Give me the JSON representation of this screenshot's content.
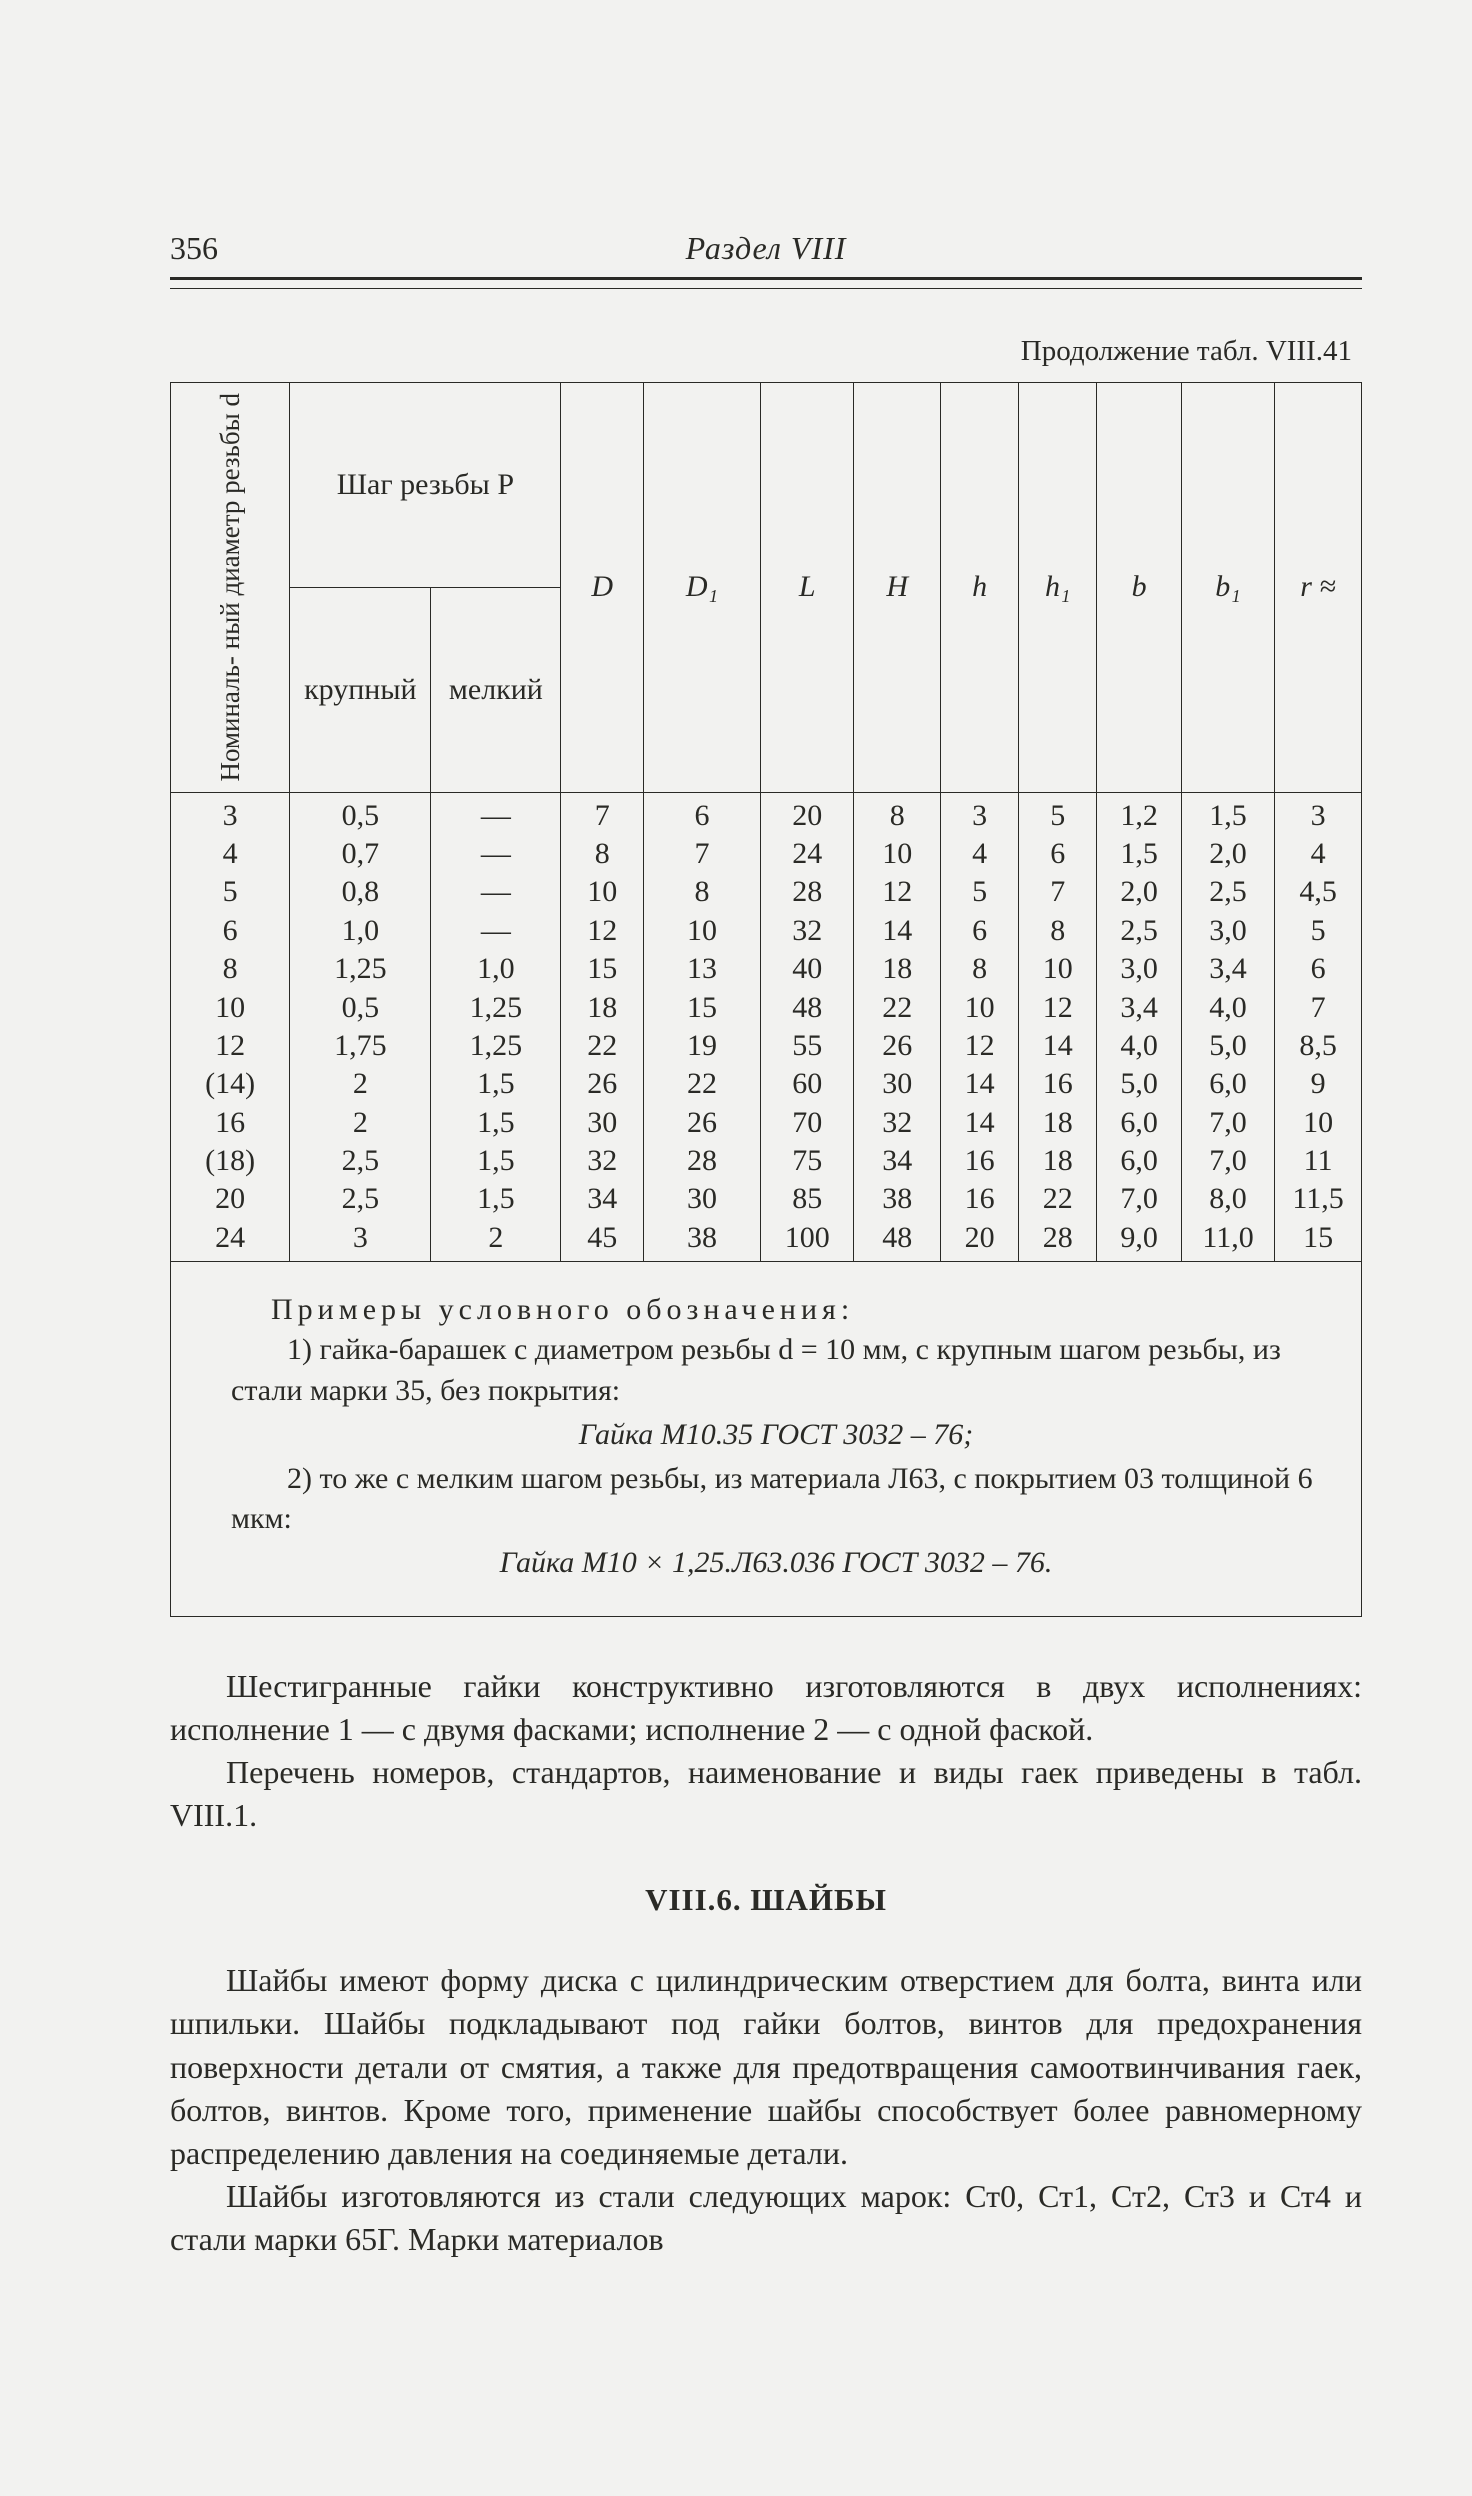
{
  "page_number": "356",
  "section_title": "Раздел  VIII",
  "table_caption": "Продолжение табл. VIII.41",
  "header": {
    "col0": "Номиналь-\nный диаметр\nрезьбы d",
    "pitch_group": "Шаг резьбы P",
    "pitch_coarse": "крупный",
    "pitch_fine": "мелкий",
    "D": "D",
    "D1": "D₁",
    "L": "L",
    "H": "H",
    "h": "h",
    "h1": "h₁",
    "b": "b",
    "b1": "b₁",
    "r": "r  ≈"
  },
  "cols": {
    "d": "3\n4\n5\n6\n8\n10\n12\n(14)\n16\n(18)\n20\n24",
    "coarse": "0,5\n0,7\n0,8\n1,0\n1,25\n0,5\n1,75\n2\n2\n2,5\n2,5\n3",
    "fine": "—\n—\n—\n—\n1,0\n1,25\n1,25\n1,5\n1,5\n1,5\n1,5\n2",
    "D": "7\n8\n10\n12\n15\n18\n22\n26\n30\n32\n34\n45",
    "D1": "6\n7\n8\n10\n13\n15\n19\n22\n26\n28\n30\n38",
    "L": "20\n24\n28\n32\n40\n48\n55\n60\n70\n75\n85\n100",
    "H": "8\n10\n12\n14\n18\n22\n26\n30\n32\n34\n38\n48",
    "h": "3\n4\n5\n6\n8\n10\n12\n14\n14\n16\n16\n20",
    "h1": "5\n6\n7\n8\n10\n12\n14\n16\n18\n18\n22\n28",
    "b": "1,2\n1,5\n2,0\n2,5\n3,0\n3,4\n4,0\n5,0\n6,0\n6,0\n7,0\n9,0",
    "b1": "1,5\n2,0\n2,5\n3,0\n3,4\n4,0\n5,0\n6,0\n7,0\n7,0\n8,0\n11,0",
    "r": "3\n4\n4,5\n5\n6\n7\n8,5\n9\n10\n11\n11,5\n15"
  },
  "examples": {
    "title": "Примеры условного обозначения:",
    "line1": "1) гайка-барашек с диаметром резьбы d = 10 мм, с крупным шагом резьбы, из стали марки 35, без покрытия:",
    "spec1": "Гайка  М10.35  ГОСТ 3032 – 76;",
    "line2": "2) то же с мелким шагом резьбы, из материала Л63, с покры­тием 03 толщиной 6 мкм:",
    "spec2": "Гайка  М10 × 1,25.Л63.036  ГОСТ 3032 – 76."
  },
  "para1": "Шестигранные гайки конструктивно изготовляются в двух исполнениях: исполнение 1 — с двумя фасками; исполнение 2 — с одной фаской.",
  "para2": "Перечень номеров, стандартов, наименование и виды гаек приведены в табл. VIII.1.",
  "section_head": "VIII.6. ШАЙБЫ",
  "para3": "Шайбы имеют форму диска с цилиндрическим отверстием для болта, винта или шпильки. Шайбы подкладывают под гайки болтов, винтов для предохранения поверхности де­тали от смятия, а также для предотвращения самоотвин­чивания гаек, болтов, винтов. Кроме того, применение шайбы способствует более равномерному распределению давления на соединяемые детали.",
  "para4": "Шайбы изготовляются из стали следующих марок: Ст0, Ст1, Ст2, Ст3 и Ст4 и стали марки 65Г. Марки материалов",
  "colwidths": {
    "d": 110,
    "coarse": 130,
    "fine": 120,
    "D": 76,
    "D1": 108,
    "L": 86,
    "H": 80,
    "h": 72,
    "h1": 72,
    "b": 78,
    "b1": 86,
    "r": 80
  }
}
